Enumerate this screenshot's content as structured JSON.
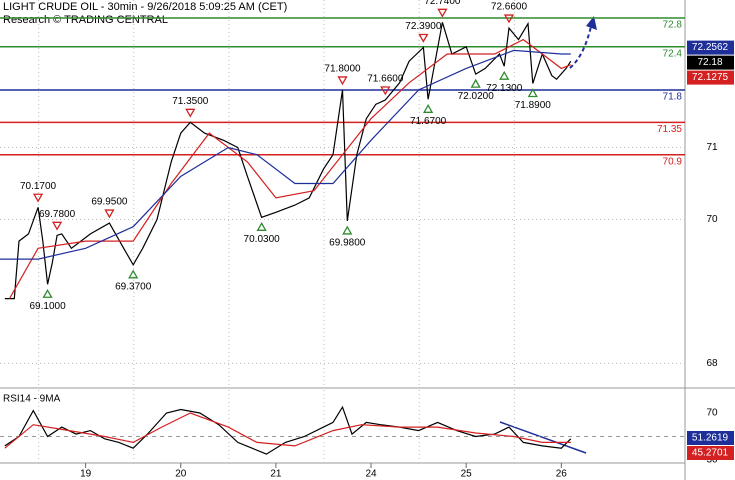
{
  "chart_data": {
    "type": "line",
    "title": "LIGHT CRUDE OIL - 30min - 9/26/2018 5:09:25 AM (CET)",
    "subtitle": "Research © TRADING CENTRAL",
    "xlim": [
      0.1,
      7.3
    ],
    "xticks": [
      {
        "value": 1,
        "label": "19"
      },
      {
        "value": 2,
        "label": "20"
      },
      {
        "value": 3,
        "label": "21"
      },
      {
        "value": 4,
        "label": "24"
      },
      {
        "value": 5,
        "label": "25"
      },
      {
        "value": 6,
        "label": "26"
      }
    ],
    "ylim": [
      67.7,
      73.05
    ],
    "yticks": [
      68,
      70,
      71
    ],
    "grid": true,
    "series": [
      {
        "color": "#000000",
        "x": [
          0.15,
          0.25,
          0.3,
          0.4,
          0.5,
          0.55,
          0.6,
          0.65,
          0.7,
          0.75,
          0.85,
          0.95,
          1.05,
          1.25,
          1.4,
          1.5,
          1.6,
          1.75,
          1.9,
          2.0,
          2.1,
          2.25,
          2.45,
          2.6,
          2.7,
          2.85,
          3.0,
          3.2,
          3.35,
          3.5,
          3.6,
          3.7,
          3.75,
          3.85,
          3.95,
          4.05,
          4.15,
          4.3,
          4.4,
          4.55,
          4.6,
          4.75,
          4.85,
          5.0,
          5.1,
          5.2,
          5.35,
          5.4,
          5.45,
          5.55,
          5.65,
          5.7,
          5.8,
          5.9,
          5.95,
          6.05,
          6.1
        ],
        "values": [
          68.9,
          68.9,
          69.7,
          69.8,
          70.17,
          69.7,
          69.1,
          69.4,
          69.78,
          69.8,
          69.6,
          69.7,
          69.8,
          69.95,
          69.6,
          69.37,
          69.6,
          70.0,
          70.8,
          71.2,
          71.35,
          71.2,
          71.1,
          71.0,
          70.6,
          70.03,
          70.1,
          70.2,
          70.3,
          70.7,
          70.9,
          71.8,
          69.98,
          70.9,
          71.4,
          71.6,
          71.66,
          71.9,
          72.2,
          72.39,
          71.67,
          72.74,
          72.3,
          72.4,
          72.02,
          72.1,
          72.3,
          72.13,
          72.66,
          72.5,
          72.72,
          71.89,
          72.3,
          72.0,
          71.95,
          72.1,
          72.2
        ]
      },
      {
        "color": "#d42020",
        "x": [
          0.2,
          0.5,
          1.0,
          1.5,
          1.9,
          2.3,
          2.7,
          3.0,
          3.4,
          3.7,
          4.0,
          4.4,
          4.8,
          5.3,
          5.6,
          6.0,
          6.1
        ],
        "values": [
          68.9,
          69.6,
          69.7,
          69.7,
          70.5,
          71.2,
          70.8,
          70.3,
          70.4,
          70.9,
          71.4,
          71.9,
          72.3,
          72.3,
          72.5,
          72.1,
          72.15
        ]
      },
      {
        "color": "#1f2f9a",
        "x": [
          0.1,
          0.5,
          1.0,
          1.5,
          2.0,
          2.5,
          2.8,
          3.2,
          3.6,
          4.0,
          4.5,
          5.0,
          5.5,
          6.0,
          6.1
        ],
        "values": [
          69.45,
          69.45,
          69.6,
          69.9,
          70.6,
          71.0,
          70.9,
          70.5,
          70.5,
          71.1,
          71.8,
          72.1,
          72.35,
          72.3,
          72.3
        ]
      }
    ],
    "levels": [
      {
        "value": 72.8,
        "color": "#2e8b2e"
      },
      {
        "value": 72.4,
        "color": "#2e8b2e"
      },
      {
        "value": 71.8,
        "color": "#1f2f9a"
      },
      {
        "value": 71.35,
        "color": "#d42020"
      },
      {
        "value": 70.9,
        "color": "#d42020"
      }
    ],
    "annotations": [
      {
        "label": "70.1700",
        "x": 0.5,
        "value": 70.17,
        "marker": "down"
      },
      {
        "label": "69.7800",
        "x": 0.7,
        "value": 69.78,
        "marker": "down"
      },
      {
        "label": "69.9500",
        "x": 1.25,
        "value": 69.95,
        "marker": "down"
      },
      {
        "label": "69.1000",
        "x": 0.6,
        "value": 69.1,
        "marker": "up"
      },
      {
        "label": "69.3700",
        "x": 1.5,
        "value": 69.37,
        "marker": "up"
      },
      {
        "label": "71.3500",
        "x": 2.1,
        "value": 71.35,
        "marker": "down"
      },
      {
        "label": "70.0300",
        "x": 2.85,
        "value": 70.03,
        "marker": "up"
      },
      {
        "label": "71.8000",
        "x": 3.7,
        "value": 71.8,
        "marker": "down"
      },
      {
        "label": "69.9800",
        "x": 3.75,
        "value": 69.98,
        "marker": "up"
      },
      {
        "label": "71.6600",
        "x": 4.15,
        "value": 71.66,
        "marker": "down"
      },
      {
        "label": "72.3900",
        "x": 4.55,
        "value": 72.39,
        "marker": "down"
      },
      {
        "label": "71.6700",
        "x": 4.6,
        "value": 71.67,
        "marker": "up"
      },
      {
        "label": "72.7400",
        "x": 4.75,
        "value": 72.74,
        "marker": "down"
      },
      {
        "label": "72.0200",
        "x": 5.1,
        "value": 72.02,
        "marker": "up"
      },
      {
        "label": "72.1300",
        "x": 5.4,
        "value": 72.13,
        "marker": "up"
      },
      {
        "label": "72.6600",
        "x": 5.45,
        "value": 72.66,
        "marker": "down"
      },
      {
        "label": "71.8900",
        "x": 5.7,
        "value": 71.89,
        "marker": "up"
      }
    ],
    "price_tags": [
      {
        "value": 72.2562,
        "color": "#1f2f9a"
      },
      {
        "value": 72.18,
        "color": "#000000"
      },
      {
        "value": 72.1275,
        "color": "#d42020"
      }
    ],
    "rsi": {
      "title": "RSI14 - 9MA",
      "ylim": [
        30,
        87
      ],
      "yticks": [
        70,
        30
      ],
      "levels": [
        50
      ],
      "series": [
        {
          "color": "#000000",
          "x": [
            0.15,
            0.3,
            0.45,
            0.6,
            0.75,
            0.9,
            1.05,
            1.2,
            1.35,
            1.5,
            1.65,
            1.85,
            2.0,
            2.2,
            2.4,
            2.6,
            2.75,
            2.9,
            3.1,
            3.3,
            3.5,
            3.6,
            3.7,
            3.8,
            3.95,
            4.1,
            4.3,
            4.5,
            4.7,
            4.9,
            5.1,
            5.3,
            5.45,
            5.6,
            5.8,
            6.0,
            6.1
          ],
          "values": [
            42,
            50,
            72,
            50,
            58,
            52,
            55,
            48,
            45,
            40,
            52,
            70,
            73,
            70,
            60,
            45,
            40,
            35,
            45,
            50,
            58,
            62,
            75,
            52,
            62,
            60,
            58,
            55,
            62,
            55,
            50,
            52,
            58,
            45,
            42,
            40,
            48
          ]
        },
        {
          "color": "#d42020",
          "x": [
            0.15,
            0.45,
            0.75,
            1.2,
            1.5,
            1.8,
            2.1,
            2.5,
            2.8,
            3.2,
            3.6,
            3.9,
            4.3,
            4.7,
            5.1,
            5.5,
            5.8,
            6.1
          ],
          "values": [
            40,
            60,
            56,
            50,
            45,
            58,
            70,
            58,
            45,
            42,
            55,
            60,
            58,
            58,
            53,
            50,
            45,
            45
          ]
        }
      ],
      "tags": [
        {
          "value": 51.2619,
          "color": "#1f2f9a"
        },
        {
          "value": 45.2701,
          "color": "#d42020"
        }
      ]
    }
  }
}
